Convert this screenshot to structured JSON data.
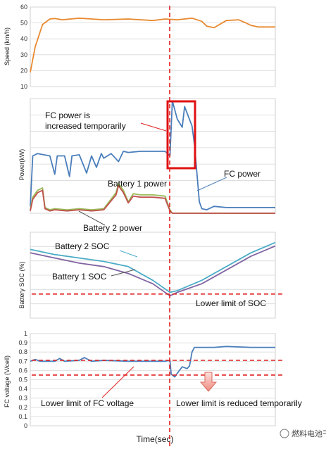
{
  "chart_data": [
    {
      "type": "line",
      "ylabel": "Speed (km/h)",
      "ylim": [
        10,
        60
      ],
      "yticks": [
        "10",
        "20",
        "30",
        "40",
        "50",
        "60"
      ],
      "grid": true,
      "series": [
        {
          "color": "#e8892f",
          "x": [
            0,
            0.02,
            0.05,
            0.08,
            0.1,
            0.13,
            0.2,
            0.3,
            0.4,
            0.5,
            0.55,
            0.6,
            0.66,
            0.7,
            0.72,
            0.75,
            0.8,
            0.85,
            0.88,
            0.9,
            0.93,
            0.97,
            1.0
          ],
          "values": [
            19,
            35,
            49,
            52.5,
            52.8,
            52,
            53,
            52,
            52.5,
            51.5,
            52.5,
            52,
            53,
            51,
            48,
            47,
            51.5,
            52,
            50,
            48.5,
            47.5,
            47.5,
            47.5
          ]
        }
      ]
    },
    {
      "type": "line",
      "ylabel": "Power(kW)",
      "series": [
        {
          "name": "FC power",
          "color": "#4a7ebb",
          "x": [
            0,
            0.01,
            0.03,
            0.08,
            0.1,
            0.11,
            0.14,
            0.16,
            0.17,
            0.2,
            0.23,
            0.25,
            0.27,
            0.29,
            0.3,
            0.33,
            0.36,
            0.38,
            0.4,
            0.45,
            0.5,
            0.55,
            0.57,
            0.58,
            0.6,
            0.62,
            0.63,
            0.66,
            0.67,
            0.69,
            0.7,
            0.72,
            0.75,
            0.8,
            0.9,
            1.0
          ],
          "values": [
            6,
            50,
            52,
            50,
            34,
            50,
            50,
            32,
            50,
            51,
            35,
            50,
            40,
            52,
            48,
            52,
            45,
            54,
            53,
            54,
            54,
            54,
            50,
            98,
            82,
            75,
            93,
            76,
            60,
            10,
            4,
            3,
            6,
            5,
            5,
            5
          ]
        },
        {
          "name": "Battery 1 power",
          "color": "#9bbb59",
          "x": [
            0,
            0.01,
            0.03,
            0.05,
            0.06,
            0.08,
            0.1,
            0.15,
            0.2,
            0.25,
            0.3,
            0.35,
            0.36,
            0.38,
            0.4,
            0.42,
            0.45,
            0.5,
            0.55,
            0.57,
            0.58,
            1.0
          ],
          "values": [
            3,
            14,
            20,
            22,
            5,
            3,
            4,
            3,
            4,
            3,
            4,
            18,
            26,
            20,
            10,
            17,
            16,
            16,
            15,
            3,
            0,
            0
          ]
        },
        {
          "name": "Battery 2 power",
          "color": "#c0504d",
          "x": [
            0,
            0.01,
            0.03,
            0.05,
            0.06,
            0.08,
            0.1,
            0.15,
            0.2,
            0.25,
            0.3,
            0.35,
            0.36,
            0.38,
            0.4,
            0.42,
            0.45,
            0.5,
            0.55,
            0.57,
            0.58,
            1.0
          ],
          "values": [
            2,
            12,
            18,
            20,
            4,
            2,
            3,
            2,
            3,
            2,
            3,
            16,
            24,
            18,
            9,
            15,
            14,
            14,
            13,
            2,
            0,
            0
          ]
        }
      ],
      "annotations": [
        "FC power is increased temporarily",
        "Battery 1 power",
        "Battery 2 power",
        "FC power"
      ]
    },
    {
      "type": "line",
      "ylabel": "Battery SOC (%)",
      "series": [
        {
          "name": "Battery 2 SOC",
          "color": "#4bacc6",
          "x": [
            0,
            0.1,
            0.2,
            0.3,
            0.4,
            0.5,
            0.57,
            0.6,
            0.7,
            0.8,
            0.9,
            1.0
          ],
          "values": [
            50,
            48.5,
            47.5,
            46.5,
            45,
            41,
            37.5,
            38,
            41,
            45,
            49,
            52
          ]
        },
        {
          "name": "Battery 1 SOC",
          "color": "#8064a2",
          "x": [
            0,
            0.1,
            0.2,
            0.3,
            0.4,
            0.5,
            0.57,
            0.6,
            0.7,
            0.8,
            0.9,
            1.0
          ],
          "values": [
            49,
            47.5,
            46,
            45,
            43,
            40,
            36.5,
            37.5,
            40,
            44,
            48,
            51
          ]
        }
      ],
      "threshold": {
        "color": "#e02020",
        "value": 37
      },
      "annotations": [
        "Battery 2 SOC",
        "Battery 1 SOC",
        "Lower limit of SOC"
      ]
    },
    {
      "type": "line",
      "ylabel": "FC voltage (V/cell)",
      "ylim": [
        0,
        1
      ],
      "yticks": [
        "0",
        "0.1",
        "0.2",
        "0.3",
        "0.4",
        "0.5",
        "0.6",
        "0.7",
        "0.8",
        "0.9",
        "1"
      ],
      "xlabel": "Time(sec)",
      "series": [
        {
          "color": "#4a7ebb",
          "x": [
            0,
            0.02,
            0.04,
            0.1,
            0.12,
            0.14,
            0.2,
            0.22,
            0.25,
            0.3,
            0.4,
            0.5,
            0.55,
            0.57,
            0.575,
            0.59,
            0.6,
            0.62,
            0.64,
            0.65,
            0.66,
            0.67,
            0.7,
            0.75,
            0.8,
            0.9,
            1.0
          ],
          "values": [
            0.7,
            0.72,
            0.7,
            0.7,
            0.73,
            0.7,
            0.71,
            0.74,
            0.7,
            0.71,
            0.7,
            0.7,
            0.7,
            0.71,
            0.56,
            0.53,
            0.57,
            0.64,
            0.62,
            0.65,
            0.8,
            0.85,
            0.85,
            0.85,
            0.86,
            0.85,
            0.85
          ]
        }
      ],
      "thresholds": [
        {
          "color": "#e02020",
          "value": 0.71
        },
        {
          "color": "#e02020",
          "value": 0.55
        }
      ],
      "annotations": [
        "Lower limit of FC voltage",
        "Lower limit is reduced temporarily"
      ]
    }
  ],
  "time_marker": {
    "color": "#e02020"
  },
  "watermark": "燃料电池干货"
}
